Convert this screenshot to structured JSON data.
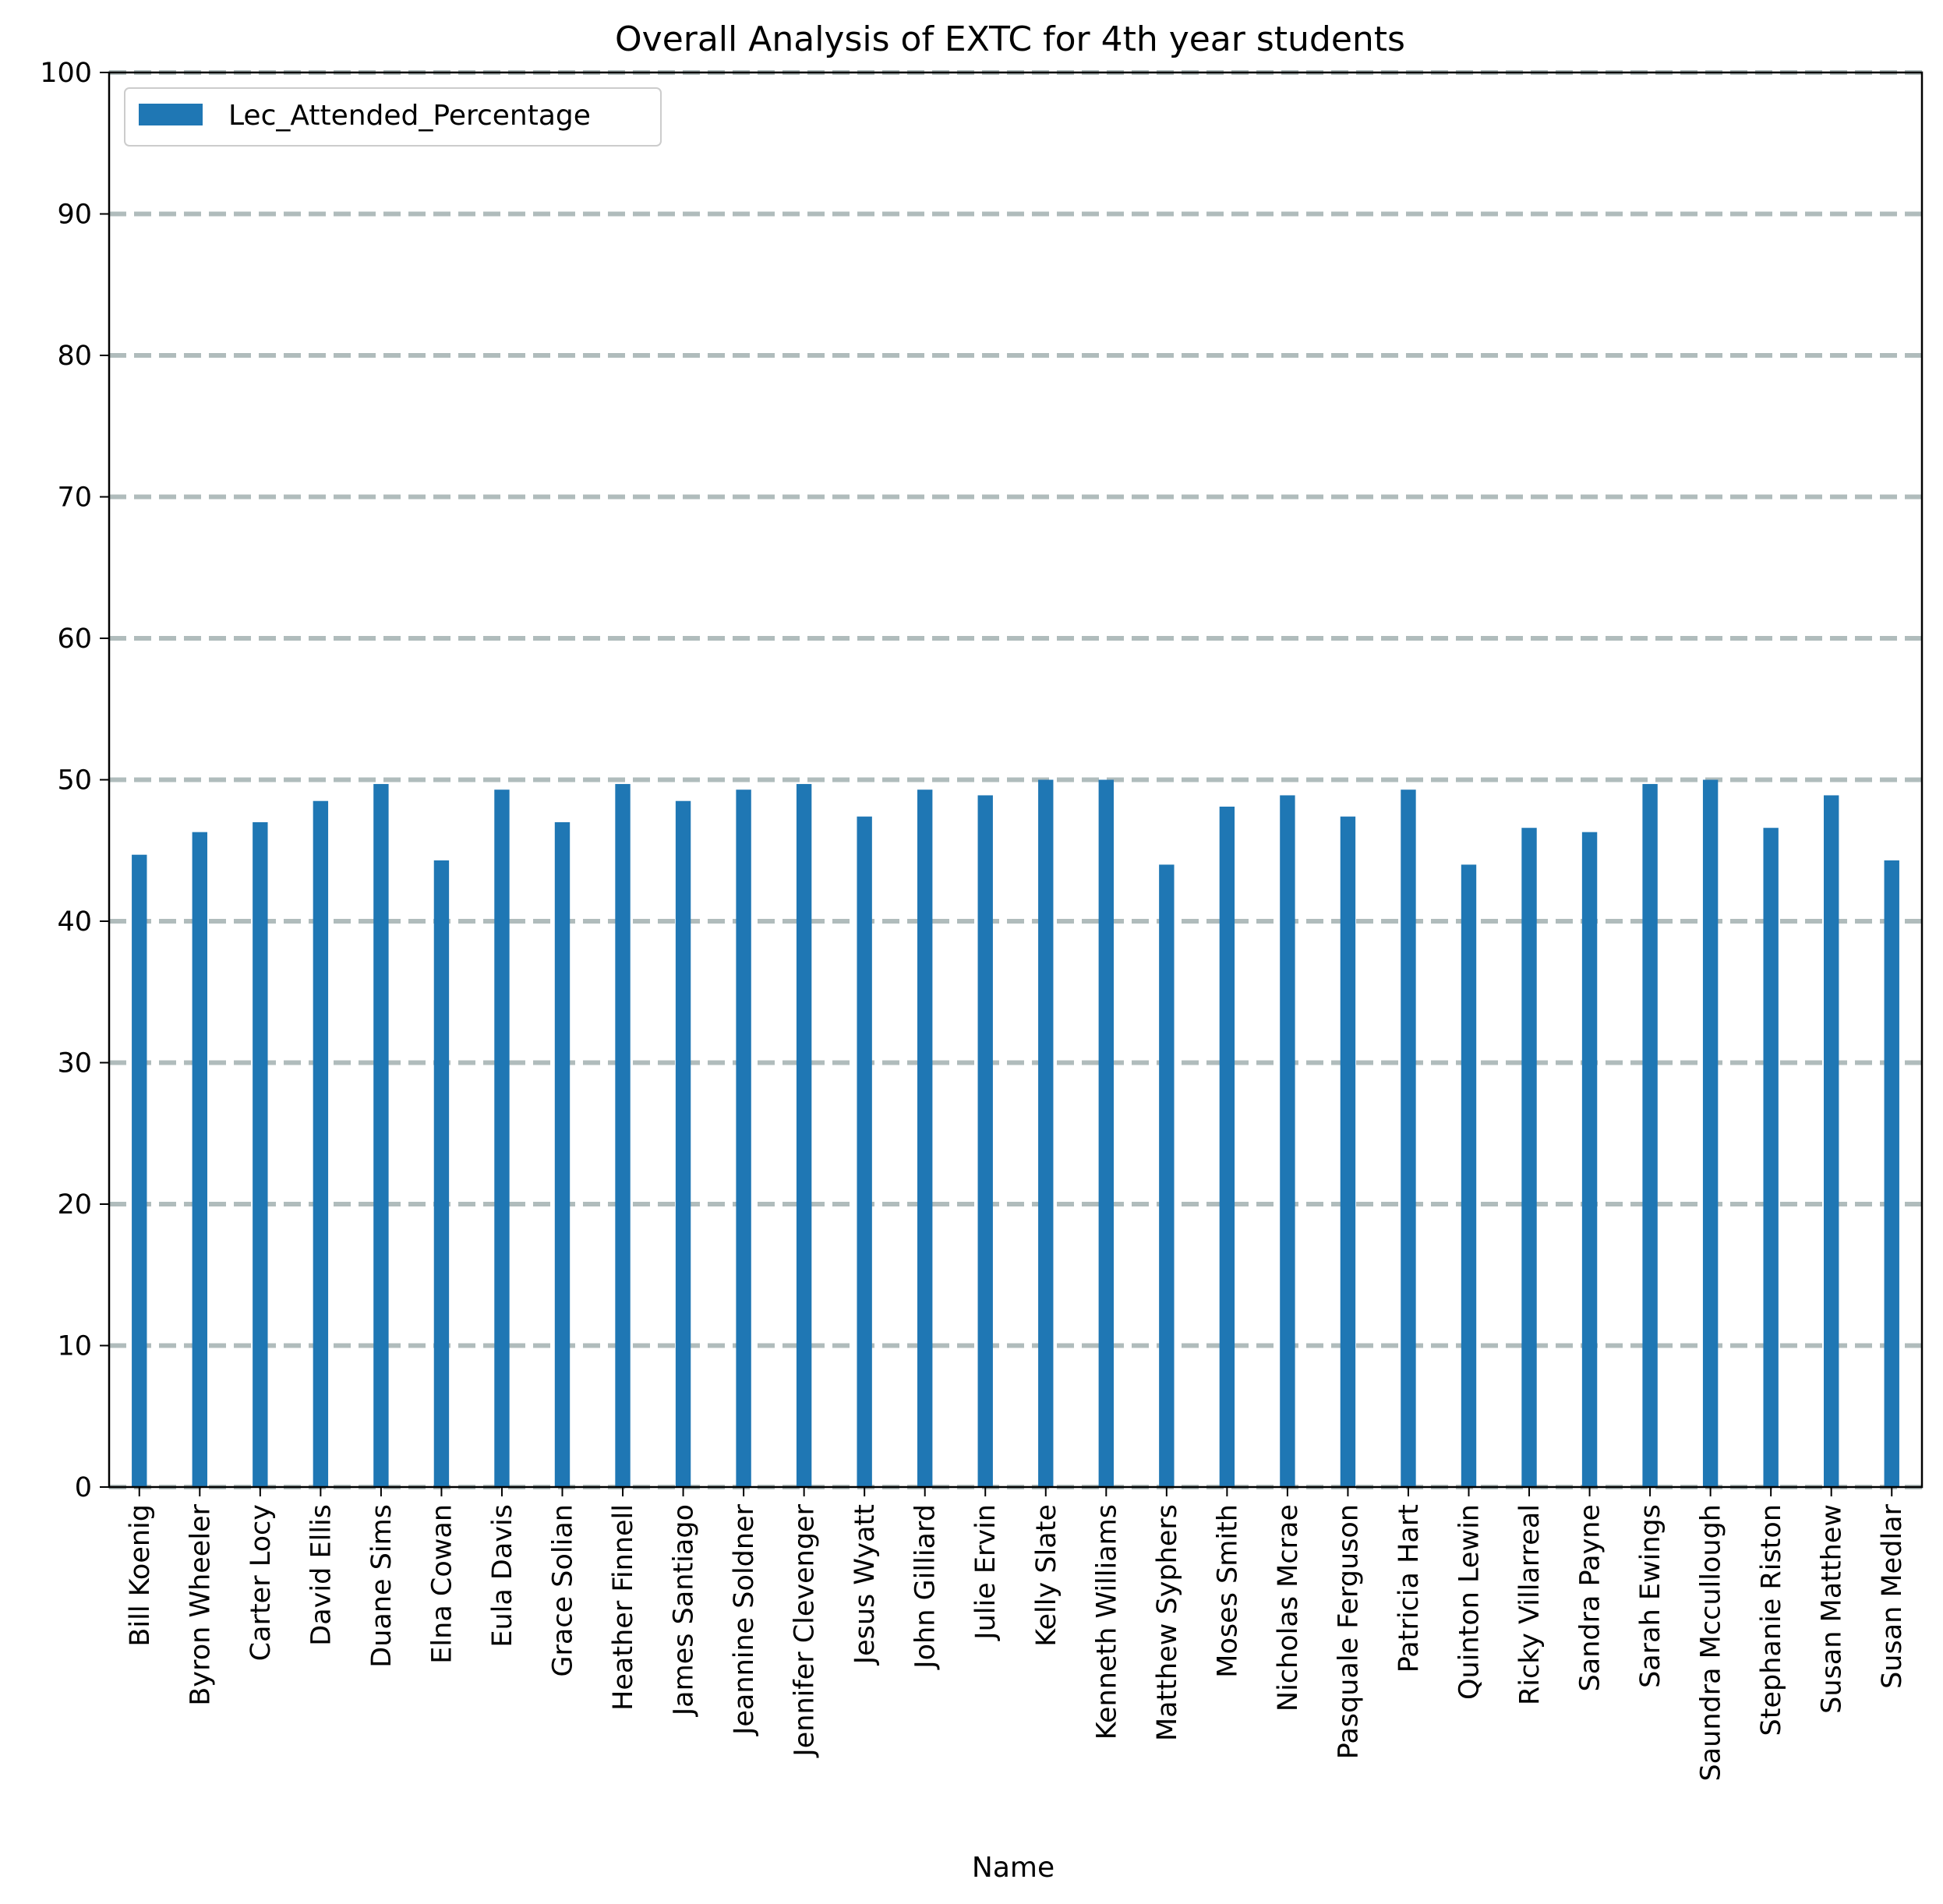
{
  "chart_data": {
    "type": "bar",
    "title": "Overall Analysis of EXTC for 4th year students",
    "xlabel": "Name",
    "ylabel": "",
    "ylim": [
      0,
      100
    ],
    "yticks": [
      0,
      10,
      20,
      30,
      40,
      50,
      60,
      70,
      80,
      90,
      100
    ],
    "grid": "horizontal dashed",
    "legend_position": "top-left",
    "bar_color": "#1f77b4",
    "grid_color": "#b0bcbc",
    "categories": [
      "Bill Koenig",
      "Byron Wheeler",
      "Carter Locy",
      "David Ellis",
      "Duane Sims",
      "Elna Cowan",
      "Eula Davis",
      "Grace Solian",
      "Heather Finnell",
      "James Santiago",
      "Jeannine Soldner",
      "Jennifer Clevenger",
      "Jesus Wyatt",
      "John Gilliard",
      "Julie Ervin",
      "Kelly Slate",
      "Kenneth Williams",
      "Matthew Syphers",
      "Moses Smith",
      "Nicholas Mcrae",
      "Pasquale Ferguson",
      "Patricia Hart",
      "Quinton Lewin",
      "Ricky Villarreal",
      "Sandra Payne",
      "Sarah Ewings",
      "Saundra Mccullough",
      "Stephanie Riston",
      "Susan Matthew",
      "Susan Medlar"
    ],
    "series": [
      {
        "name": "Lec_Attended_Percentage",
        "values": [
          44.7,
          46.3,
          47.0,
          48.5,
          49.7,
          44.3,
          49.3,
          47.0,
          49.7,
          48.5,
          49.3,
          49.7,
          47.4,
          49.3,
          48.9,
          50.0,
          50.0,
          44.0,
          48.1,
          48.9,
          47.4,
          49.3,
          44.0,
          46.6,
          46.3,
          49.7,
          50.0,
          46.6,
          48.9,
          44.3
        ]
      }
    ]
  }
}
